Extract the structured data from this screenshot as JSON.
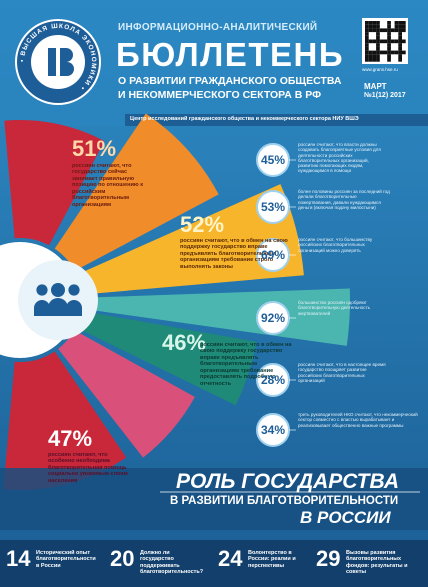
{
  "header": {
    "kicker": "ИНФОРМАЦИОННО-АНАЛИТИЧЕСКИЙ",
    "title": "БЮЛЛЕТЕНЬ",
    "subtitle_1": "О РАЗВИТИИ ГРАЖДАНСКОГО ОБЩЕСТВА",
    "subtitle_2": "И НЕКОММЕРЧЕСКОГО СЕКТОРА В РФ",
    "month": "МАРТ",
    "issue": "№1(12) 2017",
    "url": "www.grans.hse.ru",
    "center": "Центр исследований гражданского общества и некоммерческого сектора НИУ ВШЭ"
  },
  "logo": {
    "ring_text": "• ВЫСШАЯ ШКОЛА ЭКОНОМИКИ •"
  },
  "wedge_stats": [
    {
      "value": "51%",
      "text": "россиян считают, что государство сейчас занимает правильную позицию по отношению к российским благотворительным организациям"
    },
    {
      "value": "52%",
      "text": "россиян считают, что в обмен на свою поддержку государство вправе предъявлять благотворительным организациям требование строго выполнять законы"
    },
    {
      "value": "46%",
      "text": "россиян считают, что в обмен на свою поддержку государство вправе предъявлять благотворительным организациям требование предоставлять подробную отчетность"
    },
    {
      "value": "47%",
      "text": "россиян считают, что особенно необходима благотворительная помощь социально уязвимым слоям населения"
    }
  ],
  "circle_stats": [
    {
      "value": "45%",
      "text": "россиян считают, что власти должны создавать благоприятные условия для деятельности российских благотворительных организаций, развитию помогающих людям, нуждающимся в помощи"
    },
    {
      "value": "53%",
      "text": "более половины россиян за последний год делали благотворительные пожертвования, давали нуждающимся деньги (включая подачу милостыни)"
    },
    {
      "value": "69%",
      "text": "россиян считают, что большинству российских благотворительных организаций можно доверять"
    },
    {
      "value": "92%",
      "text": "большинство россиян одобряют благотворительную деятельность жертвователей"
    },
    {
      "value": "28%",
      "text": "россиян считают, что в настоящее время государство поощряет развитие российских благотворительных организаций"
    },
    {
      "value": "34%",
      "text": "треть руководителей НКО считают, что некоммерческий сектор совместно с властью вырабатывает и реализовывает общественно важные программы"
    }
  ],
  "feature": {
    "line_1": "РОЛЬ ГОСУДАРСТВА",
    "line_2": "В РАЗВИТИИ БЛАГОТВОРИТЕЛЬНОСТИ",
    "line_3": "В РОССИИ"
  },
  "contents": [
    {
      "page": 14,
      "text": "Исторический опыт благотворительности в России"
    },
    {
      "page": 20,
      "text": "Должно ли государство поддерживать благотворительность?"
    },
    {
      "page": 24,
      "text": "Волонтерство в России: реалии и перспективы"
    },
    {
      "page": 29,
      "text": "Вызовы развития благотворительных фондов: результаты и советы"
    }
  ]
}
